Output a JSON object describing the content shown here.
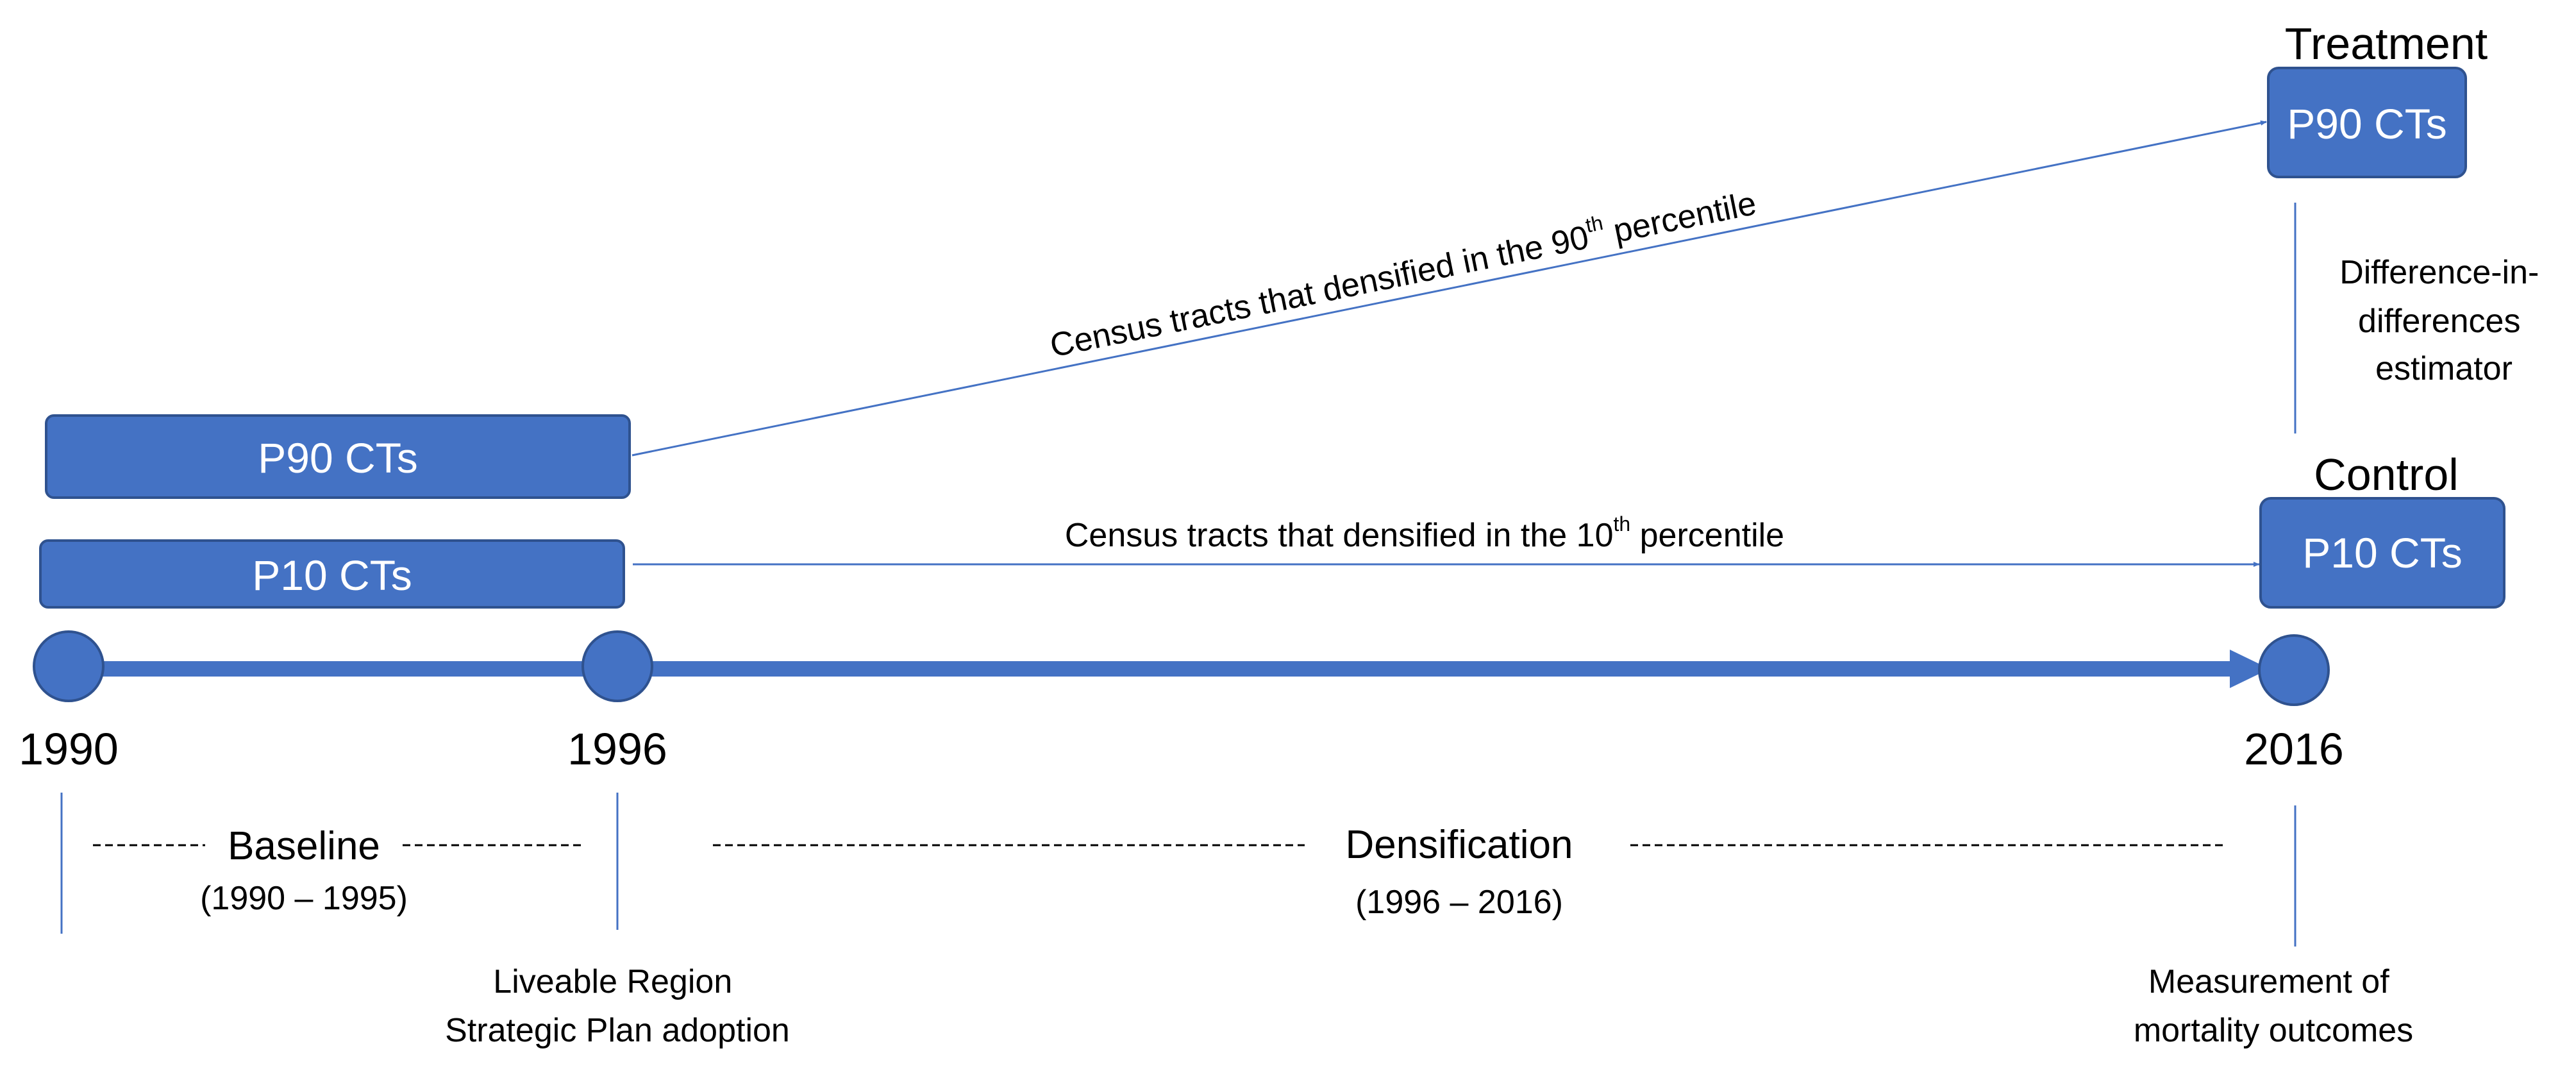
{
  "colors": {
    "box_fill": "#4472C4",
    "box_stroke": "#2F528F",
    "line": "#4472C4",
    "text": "#000000"
  },
  "boxes": {
    "p90_start": "P90 CTs",
    "p10_start": "P10 CTs",
    "p90_end": "P90 CTs",
    "p10_end": "P10 CTs"
  },
  "groups": {
    "treatment": "Treatment",
    "control": "Control"
  },
  "arrows": {
    "p90": {
      "text": "Census tracts that densified in the 90",
      "sup": "th",
      "suffix": " percentile"
    },
    "p10": {
      "text": "Census tracts that densified in the 10",
      "sup": "th",
      "suffix": " percentile"
    }
  },
  "estimator": [
    "Difference-in-",
    "differences",
    "estimator"
  ],
  "timeline": {
    "years": [
      "1990",
      "1996",
      "2016"
    ]
  },
  "periods": {
    "baseline": {
      "name": "Baseline",
      "range": "(1990 – 1995)"
    },
    "densification": {
      "name": "Densification",
      "range": "(1996 – 2016)"
    }
  },
  "notes": {
    "plan": [
      "Liveable Region",
      "Strategic Plan adoption"
    ],
    "measurement": [
      "Measurement of",
      "mortality outcomes"
    ]
  }
}
